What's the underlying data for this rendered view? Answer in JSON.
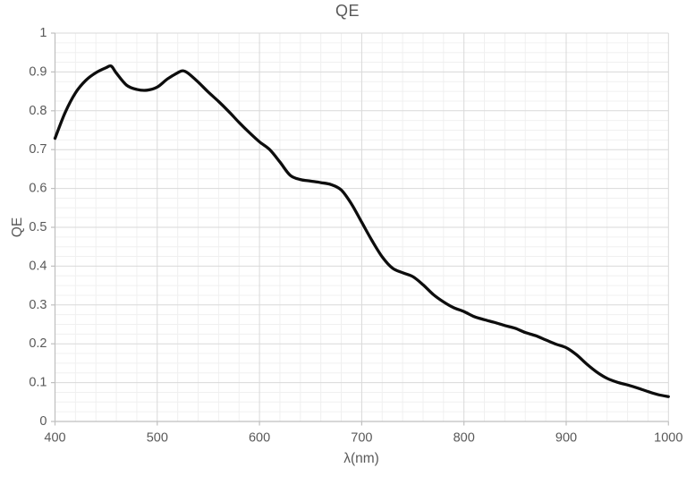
{
  "window": {
    "background": "#ffffff"
  },
  "chart_data": {
    "type": "line",
    "title": "QE",
    "xlabel": "λ(nm)",
    "ylabel": "QE",
    "xlim": [
      400,
      1000
    ],
    "ylim": [
      0,
      1
    ],
    "xtick_values": [
      400,
      500,
      600,
      700,
      800,
      900,
      1000
    ],
    "xtick_labels": [
      "400",
      "500",
      "600",
      "700",
      "800",
      "900",
      "1000"
    ],
    "ytick_values": [
      0,
      0.1,
      0.2,
      0.3,
      0.4,
      0.5,
      0.6,
      0.7,
      0.8,
      0.9,
      1
    ],
    "ytick_labels": [
      "0",
      "0.1",
      "0.2",
      "0.3",
      "0.4",
      "0.5",
      "0.6",
      "0.7",
      "0.8",
      "0.9",
      "1"
    ],
    "x_minor_step": 20,
    "y_minor_step": 0.025,
    "grid": {
      "major": true,
      "minor": true
    },
    "legend": "none",
    "series": [
      {
        "name": "QE",
        "x": [
          400,
          410,
          420,
          430,
          440,
          450,
          455,
          460,
          470,
          480,
          490,
          500,
          510,
          520,
          525,
          530,
          540,
          550,
          560,
          570,
          580,
          590,
          600,
          610,
          620,
          630,
          640,
          650,
          660,
          670,
          680,
          690,
          700,
          710,
          720,
          730,
          740,
          750,
          760,
          770,
          780,
          790,
          800,
          810,
          820,
          830,
          840,
          850,
          860,
          870,
          880,
          890,
          900,
          910,
          920,
          930,
          940,
          950,
          960,
          970,
          980,
          990,
          1000
        ],
        "y": [
          0.729,
          0.796,
          0.846,
          0.878,
          0.898,
          0.911,
          0.915,
          0.897,
          0.866,
          0.855,
          0.853,
          0.861,
          0.882,
          0.898,
          0.903,
          0.897,
          0.874,
          0.848,
          0.824,
          0.798,
          0.77,
          0.744,
          0.72,
          0.7,
          0.668,
          0.634,
          0.623,
          0.619,
          0.615,
          0.61,
          0.596,
          0.56,
          0.513,
          0.466,
          0.424,
          0.395,
          0.383,
          0.373,
          0.352,
          0.327,
          0.308,
          0.293,
          0.283,
          0.27,
          0.262,
          0.255,
          0.247,
          0.24,
          0.229,
          0.221,
          0.21,
          0.199,
          0.19,
          0.172,
          0.148,
          0.127,
          0.111,
          0.101,
          0.094,
          0.086,
          0.077,
          0.069,
          0.064
        ]
      }
    ]
  },
  "colors": {
    "curve": "#0d0d0d",
    "major_grid": "#d9d9d9",
    "minor_grid": "#f0f0f0",
    "axis": "#bfbfbf",
    "text": "#595959",
    "background": "#ffffff"
  }
}
